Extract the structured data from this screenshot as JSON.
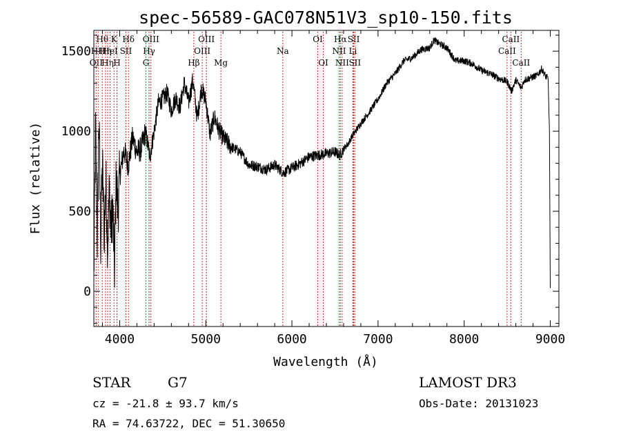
{
  "chart_data": {
    "type": "line",
    "title": "spec-56589-GAC078N51V3_sp10-150.fits",
    "xlabel": "Wavelength (Å)",
    "ylabel": "Flux (relative)",
    "xlim": [
      3700,
      9100
    ],
    "ylim": [
      -220,
      1630
    ],
    "x_ticks": [
      4000,
      5000,
      6000,
      7000,
      8000,
      9000
    ],
    "y_ticks": [
      0,
      500,
      1000,
      1500
    ],
    "series": [
      {
        "name": "flux",
        "x": [
          3700,
          3720,
          3740,
          3760,
          3780,
          3800,
          3820,
          3840,
          3860,
          3880,
          3900,
          3920,
          3940,
          3960,
          3980,
          4000,
          4050,
          4100,
          4150,
          4200,
          4250,
          4300,
          4350,
          4400,
          4450,
          4500,
          4550,
          4600,
          4650,
          4700,
          4750,
          4800,
          4850,
          4900,
          4950,
          5000,
          5050,
          5100,
          5150,
          5200,
          5300,
          5400,
          5500,
          5600,
          5700,
          5800,
          5900,
          6000,
          6100,
          6200,
          6300,
          6400,
          6500,
          6560,
          6600,
          6650,
          6700,
          6750,
          6800,
          6900,
          7000,
          7100,
          7200,
          7300,
          7400,
          7500,
          7600,
          7650,
          7700,
          7800,
          7900,
          8000,
          8100,
          8200,
          8300,
          8400,
          8500,
          8550,
          8600,
          8662,
          8700,
          8800,
          8850,
          8900,
          8950,
          8975,
          8990,
          9000
        ],
        "y": [
          80,
          1040,
          320,
          1100,
          300,
          800,
          350,
          700,
          280,
          640,
          380,
          520,
          140,
          720,
          500,
          720,
          880,
          790,
          960,
          870,
          890,
          1000,
          840,
          1000,
          1180,
          1200,
          1240,
          1130,
          1210,
          1150,
          1300,
          1180,
          1320,
          1080,
          1270,
          1190,
          980,
          1090,
          1010,
          960,
          900,
          870,
          790,
          780,
          760,
          790,
          740,
          770,
          800,
          840,
          850,
          860,
          870,
          850,
          890,
          920,
          970,
          1010,
          1050,
          1120,
          1200,
          1300,
          1360,
          1440,
          1460,
          1510,
          1520,
          1570,
          1550,
          1520,
          1440,
          1440,
          1420,
          1380,
          1360,
          1330,
          1310,
          1250,
          1320,
          1270,
          1320,
          1340,
          1350,
          1390,
          1340,
          1330,
          1000,
          20
        ]
      }
    ],
    "spectral_lines": [
      {
        "label": "Hθ",
        "wavelength": 3798,
        "row": 1
      },
      {
        "label": "OII",
        "wavelength": 3727,
        "row": 3
      },
      {
        "label": "Hη",
        "wavelength": 3836,
        "row": 2
      },
      {
        "label": "HH",
        "wavelength": 3750,
        "row": 2
      },
      {
        "label": "Hη",
        "wavelength": 3860,
        "row": 3
      },
      {
        "label": "K",
        "wavelength": 3934,
        "row": 1
      },
      {
        "label": "HeI",
        "wavelength": 3889,
        "row": 2
      },
      {
        "label": "H",
        "wavelength": 3969,
        "row": 3
      },
      {
        "label": "SII",
        "wavelength": 4072,
        "row": 2
      },
      {
        "label": "Hδ",
        "wavelength": 4102,
        "row": 1
      },
      {
        "label": "OIII",
        "wavelength": 4363,
        "row": 1
      },
      {
        "label": "Hγ",
        "wavelength": 4341,
        "row": 2
      },
      {
        "label": "G",
        "wavelength": 4305,
        "row": 3
      },
      {
        "label": "Hβ",
        "wavelength": 4861,
        "row": 3
      },
      {
        "label": "OIII",
        "wavelength": 4959,
        "row": 2
      },
      {
        "label": "OIII",
        "wavelength": 5007,
        "row": 1
      },
      {
        "label": "Mg",
        "wavelength": 5175,
        "row": 3
      },
      {
        "label": "Na",
        "wavelength": 5894,
        "row": 2
      },
      {
        "label": "OI",
        "wavelength": 6300,
        "row": 1
      },
      {
        "label": "OI",
        "wavelength": 6364,
        "row": 3
      },
      {
        "label": "NII",
        "wavelength": 6548,
        "row": 2
      },
      {
        "label": "Hα",
        "wavelength": 6563,
        "row": 1
      },
      {
        "label": "NII",
        "wavelength": 6583,
        "row": 3
      },
      {
        "label": "SII",
        "wavelength": 6717,
        "row": 1
      },
      {
        "label": "Li",
        "wavelength": 6708,
        "row": 2
      },
      {
        "label": "SII",
        "wavelength": 6731,
        "row": 3
      },
      {
        "label": "CaII",
        "wavelength": 8542,
        "row": 1
      },
      {
        "label": "CaII",
        "wavelength": 8498,
        "row": 2
      },
      {
        "label": "CaII",
        "wavelength": 8662,
        "row": 3
      }
    ]
  },
  "info": {
    "object_class": "STAR",
    "subclass": "G7",
    "survey": "LAMOST DR3",
    "redshift": "cz = -21.8 ± 93.7 km/s",
    "obs_date": "Obs-Date: 20131023",
    "coords": "RA =  74.63722, DEC =  51.30650"
  },
  "colors": {
    "line": "#000000",
    "marker": "#cc2a2a"
  }
}
